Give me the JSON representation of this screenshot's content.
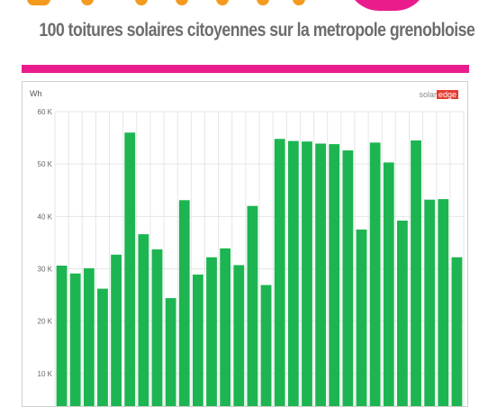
{
  "header": {
    "subtitle": "100 toitures solaires citoyennes sur la metropole grenobloise",
    "brand_orange": "#f39a1f",
    "brand_pink": "#ea1c8b"
  },
  "chart": {
    "unit_label": "Wh",
    "brand_left": "solar",
    "brand_right": "edge"
  },
  "chart_data": {
    "type": "bar",
    "title": "",
    "xlabel": "",
    "ylabel": "Wh",
    "ylim": [
      0,
      60000
    ],
    "yticks": [
      {
        "value": 10000,
        "label": "10 K"
      },
      {
        "value": 20000,
        "label": "20 K"
      },
      {
        "value": 30000,
        "label": "30 K"
      },
      {
        "value": 40000,
        "label": "40 K"
      },
      {
        "value": 50000,
        "label": "50 K"
      },
      {
        "value": 60000,
        "label": "60 K"
      }
    ],
    "grid": true,
    "bar_color": "#1db551",
    "values": [
      30600,
      29100,
      30100,
      26200,
      32700,
      56000,
      36600,
      33700,
      24400,
      43100,
      28900,
      32200,
      33900,
      30700,
      42000,
      26900,
      54800,
      54400,
      54300,
      53900,
      53800,
      52600,
      37500,
      54100,
      50300,
      39200,
      54500,
      43200,
      43300,
      32200
    ]
  }
}
